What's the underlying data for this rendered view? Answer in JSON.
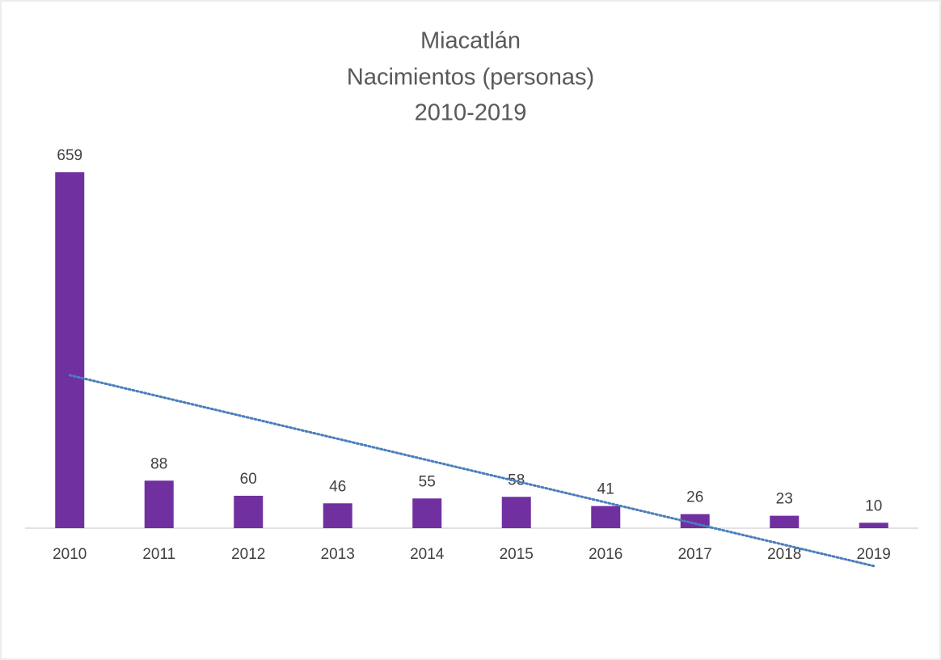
{
  "chart_data": {
    "type": "bar",
    "title": [
      "Miacatlán",
      "Nacimientos (personas)",
      "2010-2019"
    ],
    "categories": [
      "2010",
      "2011",
      "2012",
      "2013",
      "2014",
      "2015",
      "2016",
      "2017",
      "2018",
      "2019"
    ],
    "values": [
      659,
      88,
      60,
      46,
      55,
      58,
      41,
      26,
      23,
      10
    ],
    "color": "#7030a0",
    "trendline": {
      "type": "linear",
      "color": "#4a7ebb"
    }
  }
}
